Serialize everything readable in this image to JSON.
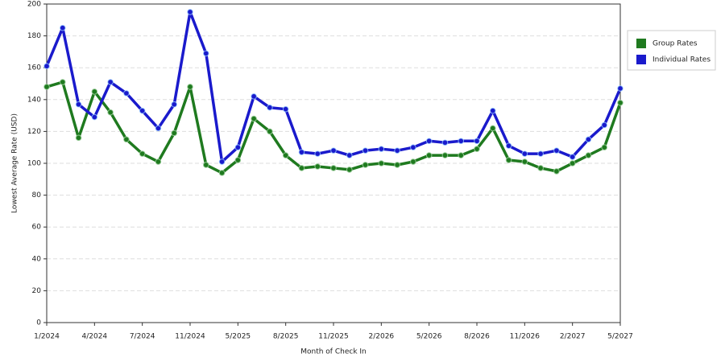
{
  "chart_data": {
    "type": "line",
    "x_label": "Month of Check In",
    "y_label": "Lowest Average Rate (USD)",
    "categories": [
      "1/2024",
      null,
      null,
      "4/2024",
      null,
      null,
      "7/2024",
      null,
      null,
      "11/2024",
      null,
      null,
      "5/2025",
      null,
      null,
      "8/2025",
      null,
      null,
      "11/2025",
      null,
      null,
      "2/2026",
      null,
      null,
      "5/2026",
      null,
      null,
      "8/2026",
      null,
      null,
      "11/2026",
      null,
      null,
      "2/2027",
      null,
      null,
      "5/2027"
    ],
    "series": [
      {
        "name": "Group Rates",
        "color": "#1f7a1f",
        "values": [
          148,
          151,
          116,
          145,
          132,
          115,
          106,
          101,
          119,
          148,
          99,
          94,
          102,
          128,
          120,
          105,
          97,
          98,
          97,
          96,
          99,
          100,
          99,
          101,
          105,
          105,
          105,
          109,
          122,
          102,
          101,
          97,
          95,
          100,
          105,
          110,
          138
        ]
      },
      {
        "name": "Individual Rates",
        "color": "#1a1acc",
        "values": [
          161,
          185,
          137,
          129,
          151,
          144,
          133,
          122,
          137,
          195,
          169,
          101,
          110,
          142,
          135,
          134,
          107,
          106,
          108,
          105,
          108,
          109,
          108,
          110,
          114,
          113,
          114,
          114,
          133,
          111,
          106,
          106,
          108,
          104,
          115,
          124,
          147
        ]
      }
    ],
    "ylim": [
      0,
      200
    ],
    "yticks": [
      0,
      20,
      40,
      60,
      80,
      100,
      120,
      140,
      160,
      180,
      200
    ],
    "grid": true,
    "legend": "right"
  }
}
